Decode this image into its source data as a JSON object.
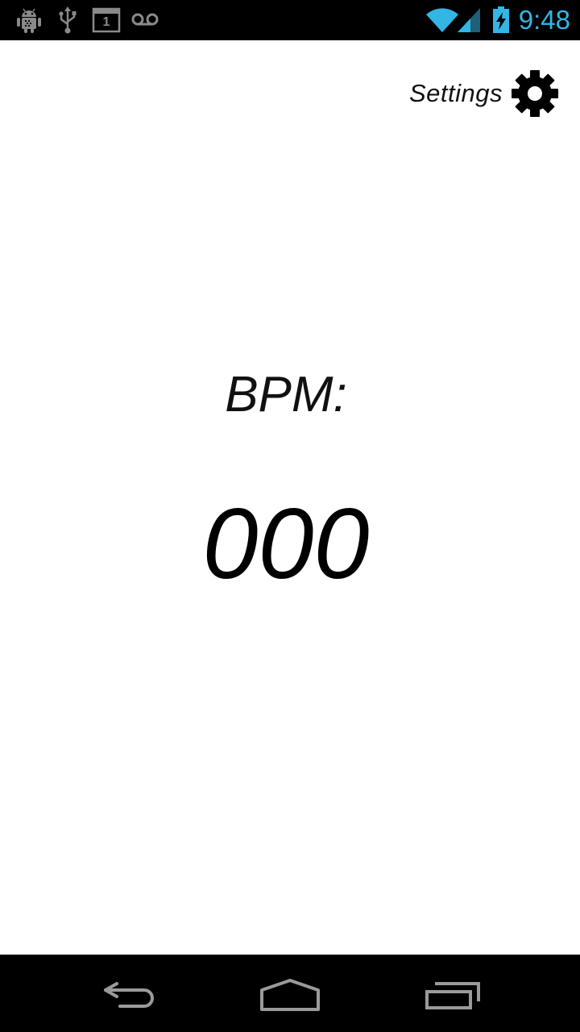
{
  "status_bar": {
    "time": "9:48",
    "icons": [
      "android-debug-icon",
      "usb-icon",
      "calendar-icon",
      "voicemail-icon",
      "wifi-icon",
      "cell-signal-icon",
      "battery-charging-icon"
    ],
    "calendar_day": "1",
    "accent_color": "#33b5e5",
    "notification_color": "#8a8a8a"
  },
  "header": {
    "settings_label": "Settings",
    "settings_icon": "gear-icon"
  },
  "main": {
    "bpm_label": "BPM:",
    "bpm_value": "000"
  },
  "nav_bar": {
    "buttons": [
      "back-icon",
      "home-icon",
      "recent-apps-icon"
    ],
    "icon_color": "#9a9a9a"
  }
}
